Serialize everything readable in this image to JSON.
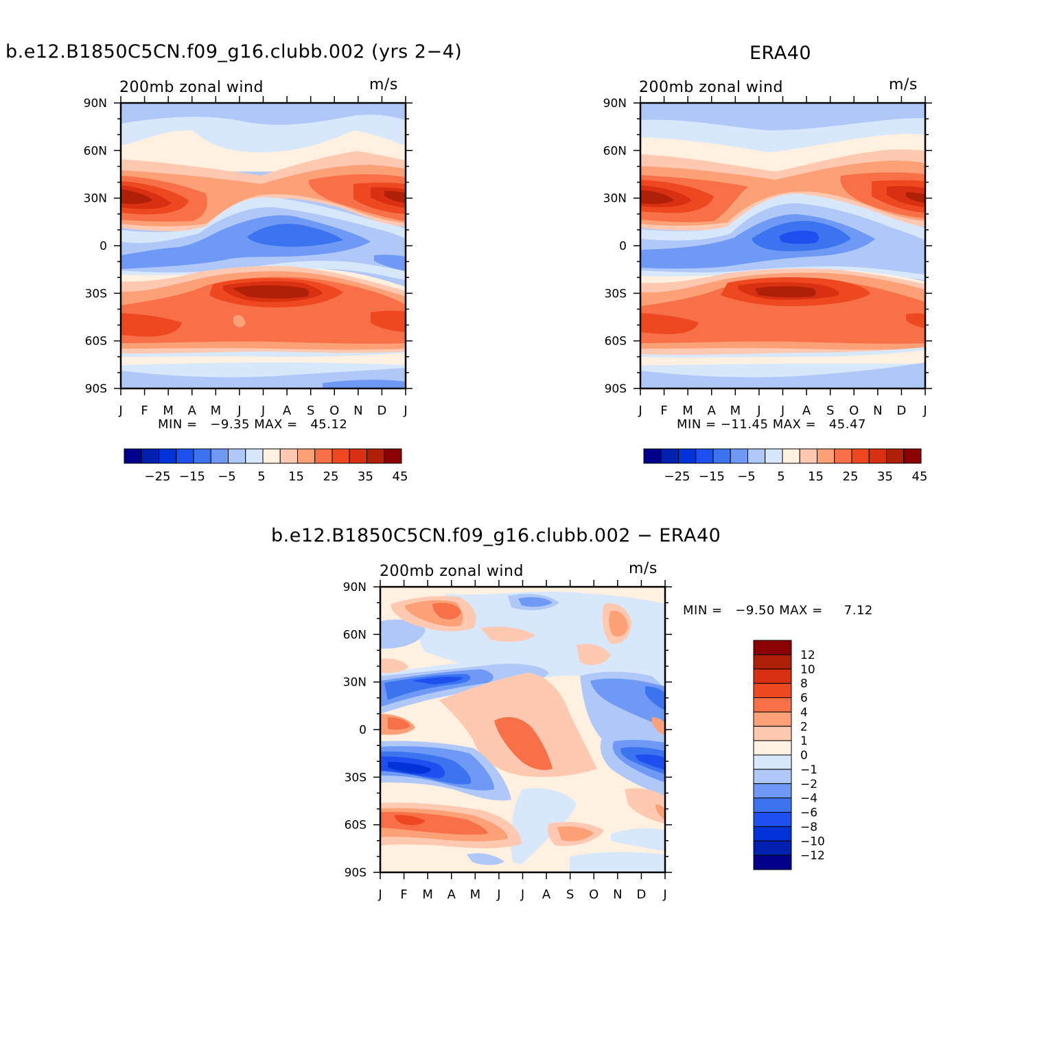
{
  "palette": {
    "levels_main": [
      "#00008b",
      "#0020b0",
      "#0034d8",
      "#1e50f0",
      "#3c74f0",
      "#6e9af5",
      "#b0c8f8",
      "#d8e8fc",
      "#fff0e0",
      "#ffc8b0",
      "#fca078",
      "#f87048",
      "#ee4820",
      "#d83010",
      "#b02008",
      "#8b0000"
    ],
    "diff_levels": [
      "#8b0000",
      "#b02008",
      "#d83010",
      "#ee4820",
      "#f87048",
      "#fca078",
      "#ffc8b0",
      "#fff0e0",
      "#d8e8fc",
      "#b0c8f8",
      "#6e9af5",
      "#3c74f0",
      "#1e50f0",
      "#0034d8",
      "#0020b0",
      "#00008b"
    ]
  },
  "axes": {
    "y_ticks": [
      "90N",
      "60N",
      "30N",
      "0",
      "30S",
      "60S",
      "90S"
    ],
    "x_ticks": [
      "J",
      "F",
      "M",
      "A",
      "M",
      "J",
      "J",
      "A",
      "S",
      "O",
      "N",
      "D",
      "J"
    ]
  },
  "chart_data": [
    {
      "type": "heatmap",
      "title": "b.e12.B1850C5CN.f09_g16.clubb.002 (yrs 2-4)",
      "left_subtitle": "200mb zonal wind",
      "right_subtitle": "m/s",
      "stats": {
        "min_label": "MIN =",
        "min": "-9.35",
        "max_label": "MAX =",
        "max": "45.12"
      },
      "colorbar_labels": [
        "-25",
        "-15",
        "-5",
        "5",
        "15",
        "25",
        "35",
        "45"
      ],
      "xlim": [
        "J",
        "J"
      ],
      "ylim": [
        "90S",
        "90N"
      ]
    },
    {
      "type": "heatmap",
      "title": "ERA40",
      "left_subtitle": "200mb zonal wind",
      "right_subtitle": "m/s",
      "stats": {
        "min_label": "MIN =",
        "min": "-11.45",
        "max_label": "MAX =",
        "max": "45.47"
      },
      "colorbar_labels": [
        "-25",
        "-15",
        "-5",
        "5",
        "15",
        "25",
        "35",
        "45"
      ],
      "xlim": [
        "J",
        "J"
      ],
      "ylim": [
        "90S",
        "90N"
      ]
    },
    {
      "type": "heatmap",
      "title": "b.e12.B1850C5CN.f09_g16.clubb.002 - ERA40",
      "left_subtitle": "200mb zonal wind",
      "right_subtitle": "m/s",
      "stats": {
        "min_label": "MIN =",
        "min": "-9.50",
        "max_label": "MAX =",
        "max": "7.12"
      },
      "colorbar_labels": [
        "12",
        "10",
        "8",
        "6",
        "4",
        "2",
        "1",
        "0",
        "-1",
        "-2",
        "-4",
        "-6",
        "-8",
        "-10",
        "-12"
      ],
      "xlim": [
        "J",
        "J"
      ],
      "ylim": [
        "90S",
        "90N"
      ]
    }
  ]
}
